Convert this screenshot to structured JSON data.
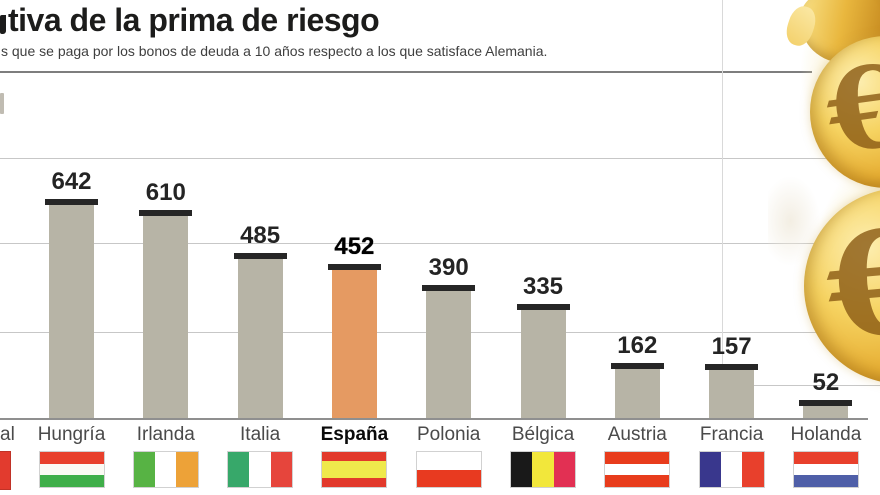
{
  "header": {
    "title": "tiva de la prima de riesgo",
    "subtitle": "s que se paga por los bonos de deuda a 10 años respecto a los que satisface Alemania."
  },
  "chart_data": {
    "type": "bar",
    "title": "tiva de la prima de riesgo",
    "subtitle": "s que se paga por los bonos de deuda a 10 años respecto a los que satisface Alemania.",
    "categories": [
      "Hungría",
      "Irlanda",
      "Italia",
      "España",
      "Polonia",
      "Bélgica",
      "Austria",
      "Francia",
      "Holanda"
    ],
    "values": [
      642,
      610,
      485,
      452,
      390,
      335,
      162,
      157,
      52
    ],
    "bars": [
      {
        "country": "Hungría",
        "value": 642,
        "highlight": false,
        "flag": {
          "direction": "horizontal",
          "stripes": [
            {
              "color": "#e8402c",
              "size": 1
            },
            {
              "color": "#fbfaf4",
              "size": 1
            },
            {
              "color": "#3fae49",
              "size": 1
            }
          ]
        }
      },
      {
        "country": "Irlanda",
        "value": 610,
        "highlight": false,
        "flag": {
          "direction": "vertical",
          "stripes": [
            {
              "color": "#57b344",
              "size": 1
            },
            {
              "color": "#ffffff",
              "size": 1
            },
            {
              "color": "#eda238",
              "size": 1
            }
          ]
        }
      },
      {
        "country": "Italia",
        "value": 485,
        "highlight": false,
        "flag": {
          "direction": "vertical",
          "stripes": [
            {
              "color": "#37a86a",
              "size": 1
            },
            {
              "color": "#ffffff",
              "size": 1
            },
            {
              "color": "#e6453c",
              "size": 1
            }
          ]
        }
      },
      {
        "country": "España",
        "value": 452,
        "highlight": true,
        "flag": {
          "direction": "horizontal",
          "stripes": [
            {
              "color": "#e2392b",
              "size": 1
            },
            {
              "color": "#efe94c",
              "size": 2
            },
            {
              "color": "#e2392b",
              "size": 1
            }
          ]
        }
      },
      {
        "country": "Polonia",
        "value": 390,
        "highlight": false,
        "flag": {
          "direction": "horizontal",
          "stripes": [
            {
              "color": "#ffffff",
              "size": 1
            },
            {
              "color": "#e83a20",
              "size": 1
            }
          ]
        }
      },
      {
        "country": "Bélgica",
        "value": 335,
        "highlight": false,
        "flag": {
          "direction": "vertical",
          "stripes": [
            {
              "color": "#191919",
              "size": 1
            },
            {
              "color": "#f2e73b",
              "size": 1
            },
            {
              "color": "#e23053",
              "size": 1
            }
          ]
        }
      },
      {
        "country": "Austria",
        "value": 162,
        "highlight": false,
        "flag": {
          "direction": "horizontal",
          "stripes": [
            {
              "color": "#e83c1c",
              "size": 1
            },
            {
              "color": "#ffffff",
              "size": 1
            },
            {
              "color": "#e83c1c",
              "size": 1
            }
          ]
        }
      },
      {
        "country": "Francia",
        "value": 157,
        "highlight": false,
        "flag": {
          "direction": "vertical",
          "stripes": [
            {
              "color": "#39378d",
              "size": 1
            },
            {
              "color": "#ffffff",
              "size": 1
            },
            {
              "color": "#e8402c",
              "size": 1
            }
          ]
        }
      },
      {
        "country": "Holanda",
        "value": 52,
        "highlight": false,
        "flag": {
          "direction": "horizontal",
          "stripes": [
            {
              "color": "#e8402c",
              "size": 1
            },
            {
              "color": "#ffffff",
              "size": 1
            },
            {
              "color": "#4f5fa8",
              "size": 1
            }
          ]
        }
      }
    ],
    "cropped_left_bar": {
      "visible_label": "al",
      "flag_fragment_color": "#e23b2e"
    },
    "highlight_category": "España",
    "bar_color": "#b7b4a6",
    "highlight_color": "#e59a62",
    "cap_color": "#262626",
    "grid": true,
    "legend": "none",
    "ylim_implied": [
      0,
      1050
    ]
  },
  "colors": {
    "header_rule": "#7e7e7e",
    "gridline": "#c7c7c7",
    "baseline": "#8f8f8f",
    "coin_gold": "#e7b83f"
  },
  "decor": {
    "euro_glyph": "€"
  }
}
